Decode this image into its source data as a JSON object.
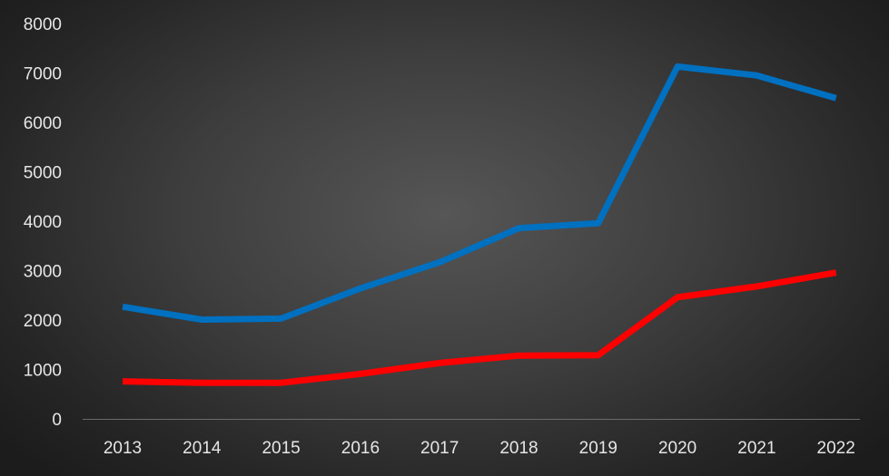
{
  "chart_data": {
    "type": "line",
    "title": "",
    "xlabel": "",
    "ylabel": "",
    "categories": [
      "2013",
      "2014",
      "2015",
      "2016",
      "2017",
      "2018",
      "2019",
      "2020",
      "2021",
      "2022"
    ],
    "y_ticks": [
      "0",
      "1000",
      "2000",
      "3000",
      "4000",
      "5000",
      "6000",
      "7000",
      "8000"
    ],
    "ylim": [
      0,
      8000
    ],
    "grid": false,
    "legend": "none",
    "series": [
      {
        "color": "#0070c0",
        "values": [
          2270,
          2010,
          2030,
          2640,
          3170,
          3860,
          3960,
          7130,
          6950,
          6490
        ]
      },
      {
        "color": "#ff0000",
        "values": [
          760,
          730,
          730,
          910,
          1130,
          1280,
          1290,
          2460,
          2680,
          2960
        ]
      }
    ]
  }
}
